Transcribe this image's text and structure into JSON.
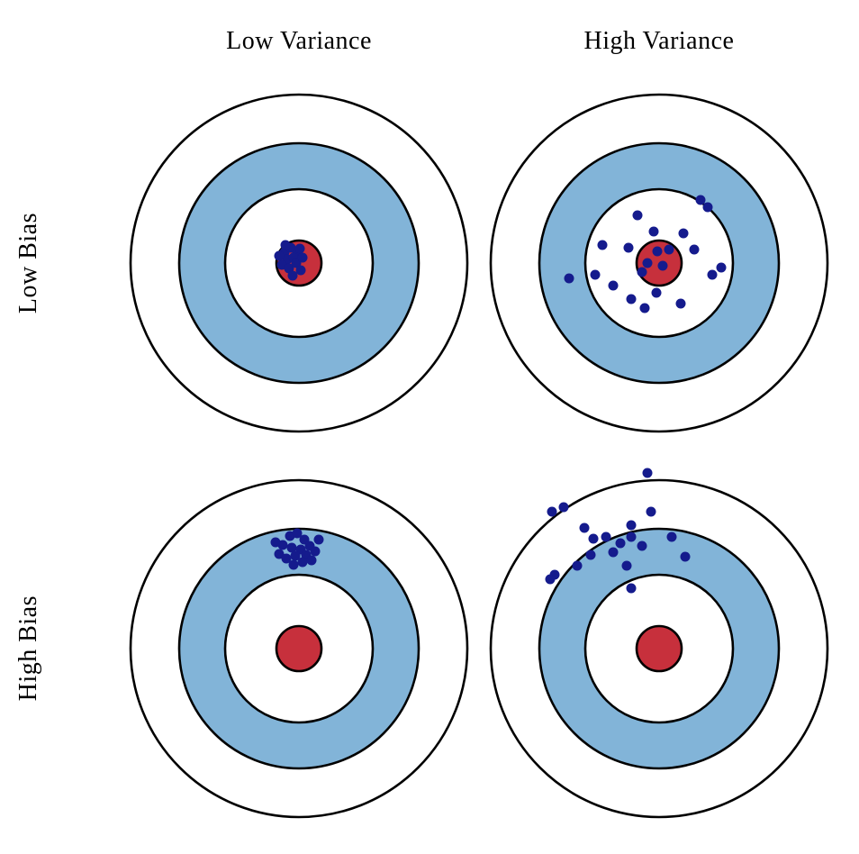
{
  "diagram": {
    "name": "bias-variance-tradeoff-bullseye",
    "col_headers": [
      "Low Variance",
      "High Variance"
    ],
    "row_headers": [
      "Low Bias",
      "High Bias"
    ],
    "colors": {
      "outline": "#000000",
      "ring_blue": "#82b4d8",
      "bull_red": "#c7303c",
      "dot_navy": "#151b8d",
      "background": "#ffffff",
      "text": "#000000"
    },
    "ring_stroke_width": 2.6,
    "dot_radius": 5.5,
    "rings": [
      {
        "name": "outer-circle",
        "r": 187,
        "fill": "#ffffff"
      },
      {
        "name": "blue-ring",
        "r": 133,
        "fill": "#82b4d8"
      },
      {
        "name": "inner-white-ring",
        "r": 82,
        "fill": "#ffffff"
      },
      {
        "name": "bullseye",
        "r": 25,
        "fill": "#c7303c"
      }
    ],
    "targets": [
      {
        "id": "low-bias-low-variance",
        "row": "Low Bias",
        "col": "Low Variance",
        "dots": [
          [
            -16,
            -12
          ],
          [
            -9,
            -17
          ],
          [
            -2,
            -11
          ],
          [
            -13,
            -4
          ],
          [
            -6,
            -6
          ],
          [
            1,
            -16
          ],
          [
            -19,
            2
          ],
          [
            -11,
            6
          ],
          [
            -3,
            0
          ],
          [
            4,
            -6
          ],
          [
            -7,
            14
          ],
          [
            -15,
            -20
          ],
          [
            2,
            8
          ],
          [
            -22,
            -8
          ]
        ]
      },
      {
        "id": "low-bias-high-variance",
        "row": "Low Bias",
        "col": "High Variance",
        "dots": [
          [
            46,
            -70
          ],
          [
            54,
            -62
          ],
          [
            -24,
            -53
          ],
          [
            -6,
            -35
          ],
          [
            27,
            -33
          ],
          [
            -63,
            -20
          ],
          [
            -34,
            -17
          ],
          [
            -2,
            -13
          ],
          [
            11,
            -15
          ],
          [
            39,
            -15
          ],
          [
            -13,
            0
          ],
          [
            4,
            3
          ],
          [
            69,
            5
          ],
          [
            59,
            13
          ],
          [
            -71,
            13
          ],
          [
            -100,
            17
          ],
          [
            -19,
            10
          ],
          [
            -51,
            25
          ],
          [
            -3,
            33
          ],
          [
            -31,
            40
          ],
          [
            24,
            45
          ],
          [
            -16,
            50
          ]
        ]
      },
      {
        "id": "high-bias-low-variance",
        "row": "High Bias",
        "col": "Low Variance",
        "dots": [
          [
            -10,
            -125
          ],
          [
            -2,
            -128
          ],
          [
            6,
            -121
          ],
          [
            -18,
            -115
          ],
          [
            -8,
            -112
          ],
          [
            2,
            -110
          ],
          [
            12,
            -114
          ],
          [
            -22,
            -105
          ],
          [
            -14,
            -100
          ],
          [
            -4,
            -103
          ],
          [
            8,
            -104
          ],
          [
            18,
            -108
          ],
          [
            -6,
            -93
          ],
          [
            4,
            -96
          ],
          [
            14,
            -98
          ],
          [
            -26,
            -118
          ],
          [
            22,
            -121
          ]
        ]
      },
      {
        "id": "high-bias-high-variance",
        "row": "High Bias",
        "col": "High Variance",
        "dots": [
          [
            -13,
            -195
          ],
          [
            -119,
            -152
          ],
          [
            -106,
            -157
          ],
          [
            -83,
            -134
          ],
          [
            -31,
            -137
          ],
          [
            -9,
            -152
          ],
          [
            -73,
            -122
          ],
          [
            -59,
            -124
          ],
          [
            -43,
            -117
          ],
          [
            -31,
            -124
          ],
          [
            -19,
            -114
          ],
          [
            -51,
            -107
          ],
          [
            -76,
            -104
          ],
          [
            -91,
            -92
          ],
          [
            -116,
            -82
          ],
          [
            -36,
            -92
          ],
          [
            14,
            -124
          ],
          [
            29,
            -102
          ],
          [
            -121,
            -77
          ],
          [
            -31,
            -67
          ]
        ]
      }
    ]
  }
}
